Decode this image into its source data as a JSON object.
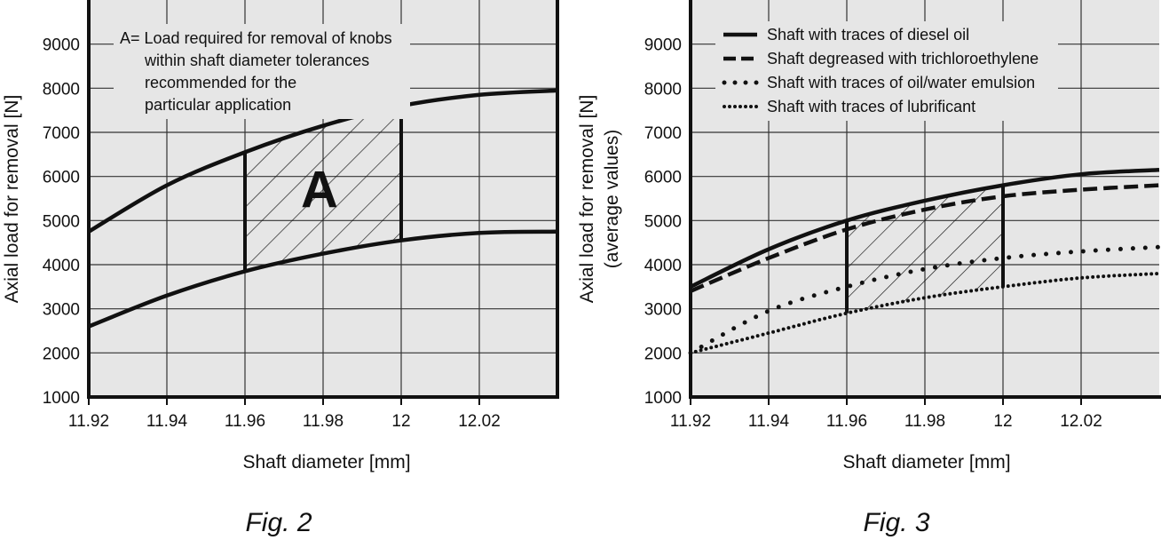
{
  "chart_data": [
    {
      "type": "line",
      "caption": "Fig. 2",
      "xlabel": "Shaft diameter [mm]",
      "ylabel": "Axial load for removal [N]",
      "xlim": [
        11.92,
        12.04
      ],
      "ylim": [
        1000,
        10000
      ],
      "x_ticks": [
        "11.92",
        "11.94",
        "11.96",
        "11.98",
        "12",
        "12.02"
      ],
      "y_ticks": [
        "1000",
        "2000",
        "3000",
        "4000",
        "5000",
        "6000",
        "7000",
        "8000",
        "9000"
      ],
      "grid": true,
      "series": [
        {
          "style": "solid",
          "x": [
            11.92,
            11.94,
            11.96,
            11.98,
            12.0,
            12.02,
            12.04
          ],
          "y": [
            4750,
            5800,
            6550,
            7150,
            7600,
            7850,
            7950
          ]
        },
        {
          "style": "solid",
          "x": [
            11.92,
            11.94,
            11.96,
            11.98,
            12.0,
            12.02,
            12.04
          ],
          "y": [
            2600,
            3300,
            3850,
            4250,
            4550,
            4720,
            4750
          ]
        }
      ],
      "region": {
        "label": "A",
        "x_from": 11.96,
        "x_to": 12.0
      },
      "annotation": [
        "A= Load required for removal of knobs",
        "within shaft diameter tolerances",
        "recommended for the",
        "particular application"
      ]
    },
    {
      "type": "line",
      "caption": "Fig. 3",
      "xlabel": "Shaft diameter [mm]",
      "ylabel": [
        "Axial load for removal [N]",
        "(average values)"
      ],
      "xlim": [
        11.92,
        12.04
      ],
      "ylim": [
        1000,
        10000
      ],
      "x_ticks": [
        "11.92",
        "11.94",
        "11.96",
        "11.98",
        "12",
        "12.02"
      ],
      "y_ticks": [
        "1000",
        "2000",
        "3000",
        "4000",
        "5000",
        "6000",
        "7000",
        "8000",
        "9000"
      ],
      "grid": true,
      "legend_position": "top-left",
      "series": [
        {
          "name": "Shaft with traces of diesel oil",
          "style": "solid",
          "x": [
            11.92,
            11.94,
            11.96,
            11.98,
            12.0,
            12.02,
            12.04
          ],
          "y": [
            3500,
            4350,
            5000,
            5450,
            5800,
            6050,
            6150
          ]
        },
        {
          "name": "Shaft degreased with trichloroethylene",
          "style": "dashed",
          "x": [
            11.92,
            11.94,
            11.96,
            11.98,
            12.0,
            12.02,
            12.04
          ],
          "y": [
            3400,
            4150,
            4800,
            5250,
            5550,
            5700,
            5800
          ]
        },
        {
          "name": "Shaft  with traces of oil/water emulsion",
          "style": "dotted-sparse",
          "x": [
            11.92,
            11.94,
            11.96,
            11.98,
            12.0,
            12.02,
            12.04
          ],
          "y": [
            2000,
            2950,
            3500,
            3900,
            4150,
            4300,
            4400
          ]
        },
        {
          "name": "Shaft  with traces of lubrificant",
          "style": "dotted-dense",
          "x": [
            11.92,
            11.94,
            11.96,
            11.98,
            12.0,
            12.02,
            12.04
          ],
          "y": [
            2000,
            2450,
            2900,
            3250,
            3500,
            3700,
            3800
          ]
        }
      ],
      "region": {
        "x_from": 11.96,
        "x_to": 12.0
      }
    }
  ]
}
